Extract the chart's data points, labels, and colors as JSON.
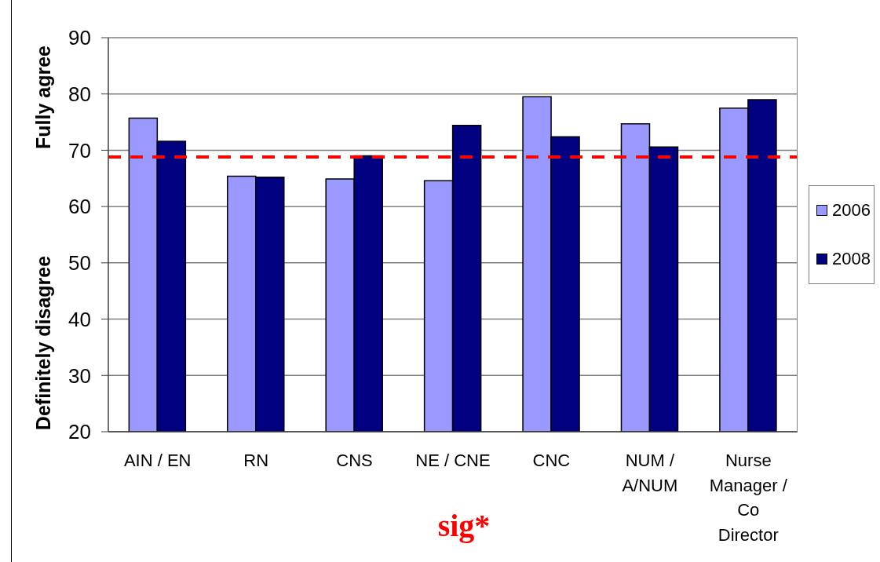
{
  "chart_data": {
    "type": "bar",
    "categories": [
      "AIN / EN",
      "RN",
      "CNS",
      "NE / CNE",
      "CNC",
      "NUM / A/NUM",
      "Nurse Manager / Co Director"
    ],
    "series": [
      {
        "name": "2006",
        "color": "#9999ff",
        "values": [
          75.7,
          65.4,
          64.9,
          64.6,
          79.5,
          74.7,
          77.5
        ]
      },
      {
        "name": "2008",
        "color": "#000080",
        "values": [
          71.6,
          65.2,
          69.0,
          74.4,
          72.4,
          70.6,
          79.0
        ]
      }
    ],
    "ylim": [
      20,
      90
    ],
    "yticks": [
      20,
      30,
      40,
      50,
      60,
      70,
      80,
      90
    ],
    "grid": "y",
    "legend": "right",
    "ref_lines": [
      {
        "axis": "y",
        "value": 68.8,
        "color": "#ff0000",
        "line_style": "dashed"
      }
    ],
    "annotations": [
      "Fully agree",
      "Definitely disagree",
      "sig*"
    ]
  }
}
